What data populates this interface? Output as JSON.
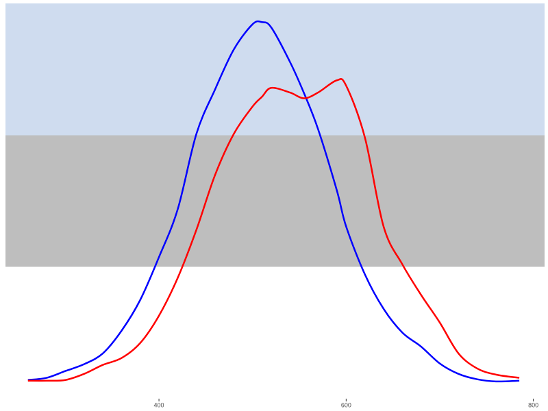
{
  "chart_data": {
    "type": "line",
    "x": [
      260,
      280,
      300,
      320,
      340,
      360,
      380,
      400,
      420,
      440,
      460,
      480,
      500,
      510,
      520,
      540,
      555,
      570,
      590,
      600,
      620,
      640,
      660,
      680,
      700,
      720,
      740,
      760,
      785
    ],
    "series": [
      {
        "color": "#0000ff",
        "values": [
          0.002,
          0.008,
          0.027,
          0.046,
          0.076,
          0.139,
          0.225,
          0.344,
          0.477,
          0.687,
          0.811,
          0.922,
          0.992,
          0.998,
          0.983,
          0.887,
          0.8,
          0.7,
          0.53,
          0.429,
          0.296,
          0.2,
          0.134,
          0.095,
          0.048,
          0.019,
          0.004,
          -0.002,
          0
        ]
      },
      {
        "color": "#ff0000",
        "values": [
          0,
          0,
          0.002,
          0.019,
          0.044,
          0.063,
          0.105,
          0.181,
          0.286,
          0.42,
          0.573,
          0.687,
          0.763,
          0.79,
          0.815,
          0.802,
          0.786,
          0.802,
          0.836,
          0.821,
          0.677,
          0.429,
          0.324,
          0.239,
          0.162,
          0.076,
          0.034,
          0.017,
          0.008
        ]
      }
    ],
    "bands": [
      {
        "ymin": 0.683,
        "ymax": 1.05,
        "color": "#cfdcef"
      },
      {
        "ymin": 0.317,
        "ymax": 0.683,
        "color": "#bebebe"
      }
    ],
    "xlim": [
      236,
      812
    ],
    "ylim": [
      -0.05,
      1.05
    ],
    "xticks": [
      400,
      600,
      800
    ]
  }
}
